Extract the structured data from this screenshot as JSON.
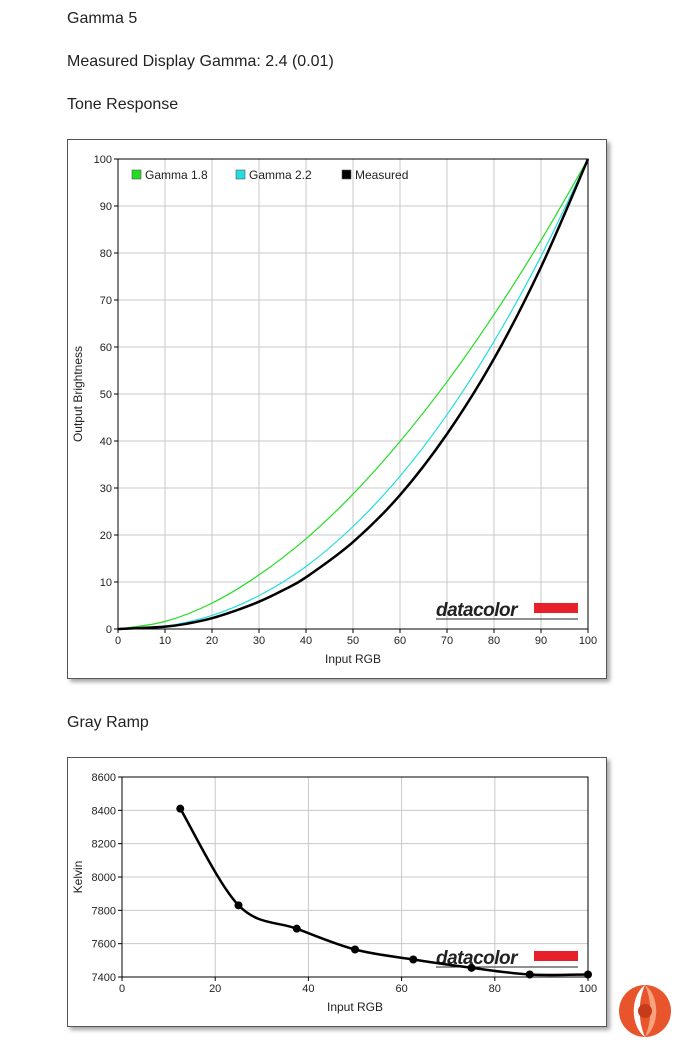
{
  "headings": {
    "title": "Gamma 5",
    "measured": "Measured Display Gamma: 2.4 (0.01)",
    "tone_response": "Tone Response",
    "gray_ramp": "Gray Ramp"
  },
  "watermark_text": "datacolor",
  "colors": {
    "gamma18": "#22dd22",
    "gamma22": "#22dddd",
    "measured": "#000000",
    "datacolor_red": "#e8202a",
    "grid": "#c8c8c8"
  },
  "chart_data": [
    {
      "type": "line",
      "title": "",
      "xlabel": "Input RGB",
      "ylabel": "Output Brightness",
      "xlim": [
        0,
        100
      ],
      "ylim": [
        0,
        100
      ],
      "xticks": [
        0,
        10,
        20,
        30,
        40,
        50,
        60,
        70,
        80,
        90,
        100
      ],
      "yticks": [
        0,
        10,
        20,
        30,
        40,
        50,
        60,
        70,
        80,
        90,
        100
      ],
      "grid": true,
      "legend_position": "top-left",
      "series": [
        {
          "name": "Gamma 1.8",
          "color": "#22dd22",
          "x": [
            0,
            10,
            20,
            30,
            40,
            50,
            60,
            70,
            80,
            90,
            100
          ],
          "y": [
            0,
            1.6,
            5.5,
            11.5,
            19.2,
            28.7,
            39.9,
            52.6,
            66.9,
            82.7,
            100
          ]
        },
        {
          "name": "Gamma 2.2",
          "color": "#22dddd",
          "x": [
            0,
            10,
            20,
            30,
            40,
            50,
            60,
            70,
            80,
            90,
            100
          ],
          "y": [
            0,
            0.6,
            2.9,
            7.1,
            13.3,
            21.8,
            32.5,
            45.6,
            61.2,
            79.3,
            100
          ]
        },
        {
          "name": "Measured",
          "color": "#000000",
          "x": [
            0,
            10,
            15,
            20,
            25,
            30,
            35,
            40,
            50,
            60,
            70,
            80,
            90,
            100
          ],
          "y": [
            0,
            0.5,
            1.2,
            2.3,
            3.9,
            5.8,
            8.2,
            11.0,
            18.5,
            28.5,
            41.5,
            57.5,
            77.0,
            100
          ]
        }
      ]
    },
    {
      "type": "line",
      "title": "",
      "xlabel": "Input RGB",
      "ylabel": "Kelvin",
      "xlim": [
        0,
        100
      ],
      "ylim": [
        7400,
        8600
      ],
      "xticks": [
        0,
        20,
        40,
        60,
        80,
        100
      ],
      "yticks": [
        7400,
        7600,
        7800,
        8000,
        8200,
        8400,
        8600
      ],
      "grid": true,
      "series": [
        {
          "name": "",
          "color": "#000000",
          "x": [
            12.5,
            25,
            37.5,
            50,
            62.5,
            75,
            87.5,
            100
          ],
          "y": [
            8410,
            7830,
            7690,
            7565,
            7505,
            7455,
            7415,
            7415
          ]
        }
      ]
    }
  ]
}
